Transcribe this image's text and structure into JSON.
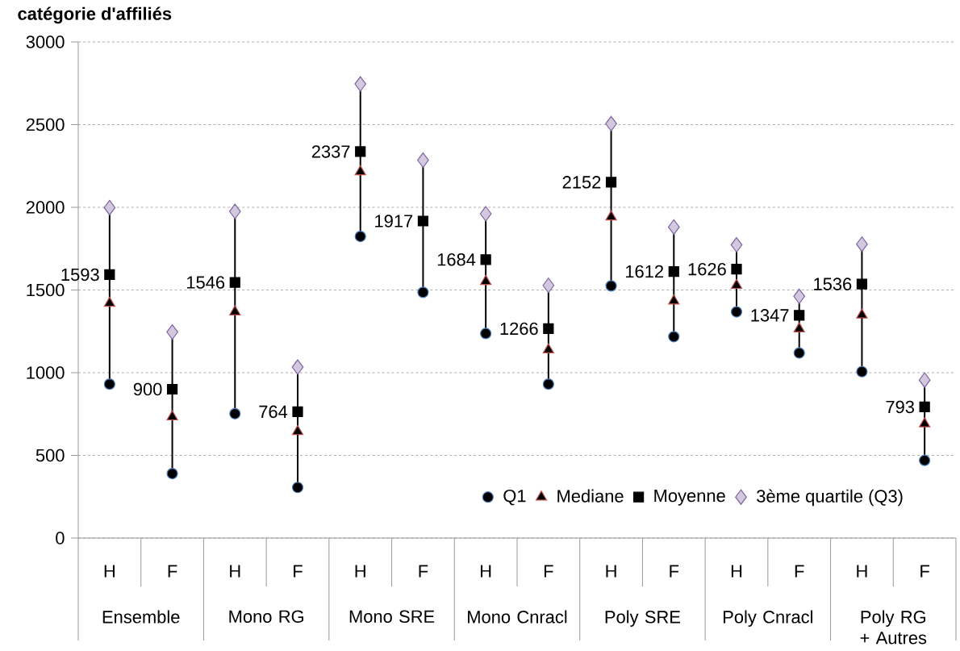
{
  "chart_data": {
    "type": "scatter",
    "title": "catégorie d'affiliés",
    "categories": [
      "H",
      "F",
      "H",
      "F",
      "H",
      "F",
      "H",
      "F",
      "H",
      "F",
      "H",
      "F",
      "H",
      "F"
    ],
    "annotations": [
      "Ensemble",
      "Mono RG",
      "Mono SRE",
      "Mono Cnracl",
      "Poly SRE",
      "Poly Cnracl",
      "Poly RG + Autres"
    ],
    "series": [
      {
        "name": "Q1",
        "color": "#4f81bd",
        "marker": "circle",
        "values": [
          931,
          390,
          752,
          306,
          1824,
          1486,
          1237,
          931,
          1525,
          1218,
          1368,
          1119,
          1006,
          470
        ]
      },
      {
        "name": "Mediane",
        "color": "#c0504d",
        "marker": "triangle",
        "values": [
          1420,
          733,
          1368,
          644,
          2215,
          null,
          1552,
          1138,
          1942,
          1434,
          1528,
          1265,
          1349,
          691
        ]
      },
      {
        "name": "Moyenne",
        "color": "#000000",
        "marker": "square",
        "values": [
          1593,
          900,
          1546,
          764,
          2337,
          1917,
          1684,
          1266,
          2152,
          1612,
          1626,
          1347,
          1536,
          793
        ],
        "value_labels": [
          "1593",
          "900",
          "1546",
          "764",
          "2337",
          "1917",
          "1684",
          "1266",
          "2152",
          "1612",
          "1626",
          "1347",
          "1536",
          "793"
        ]
      },
      {
        "name": "3ème quartile (Q3)",
        "color": "#8064a2",
        "marker": "diamond",
        "values": [
          1998,
          1246,
          1975,
          1034,
          2746,
          2285,
          1961,
          1528,
          2506,
          1881,
          1773,
          1462,
          1777,
          955
        ]
      }
    ],
    "ylim": [
      0,
      3000
    ],
    "yticks": [
      0,
      500,
      1000,
      1500,
      2000,
      2500,
      3000
    ],
    "grid": "y",
    "legend": "bottom right"
  }
}
